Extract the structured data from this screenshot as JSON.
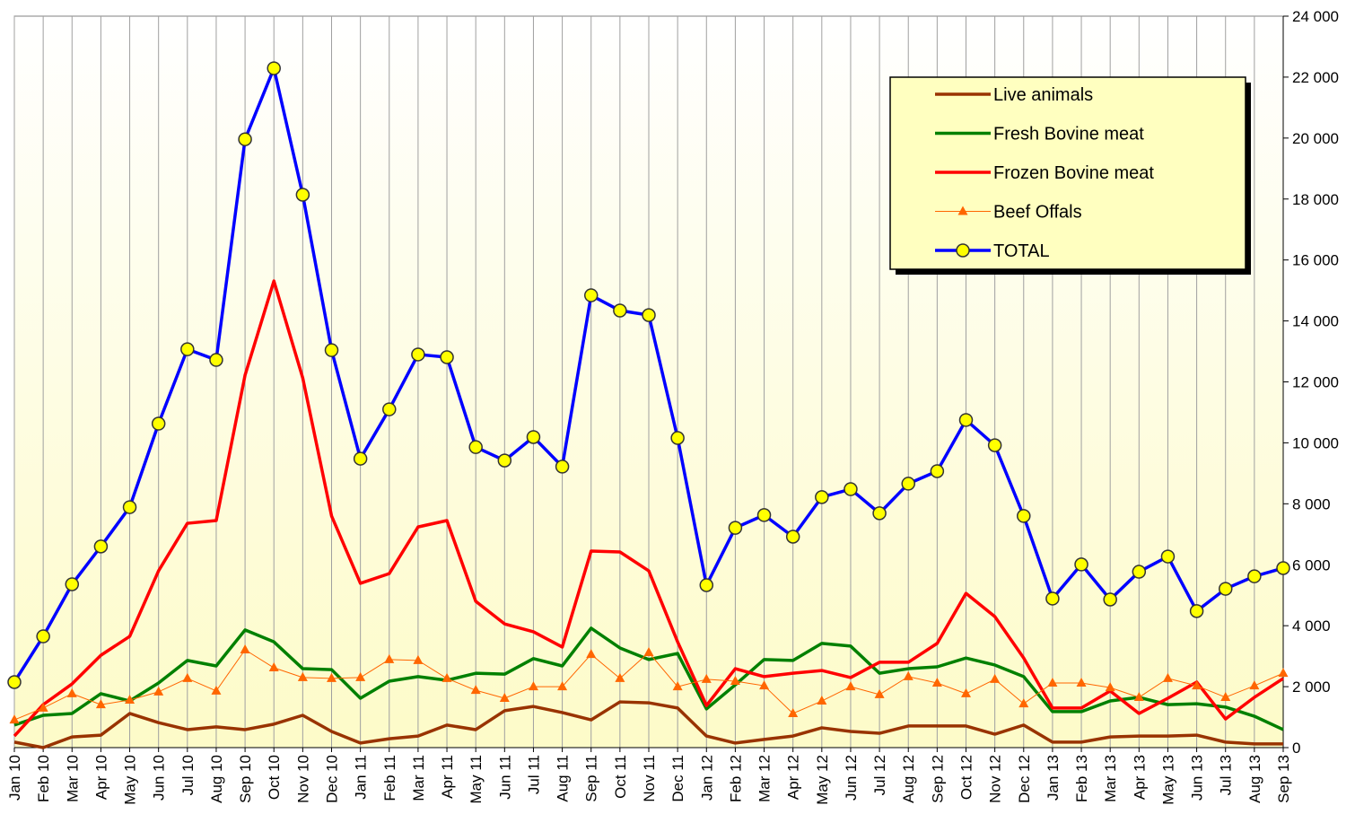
{
  "chart_data": {
    "type": "line",
    "categories": [
      "Jan 10",
      "Feb 10",
      "Mar 10",
      "Apr 10",
      "May 10",
      "Jun 10",
      "Jul 10",
      "Aug 10",
      "Sep 10",
      "Oct 10",
      "Nov 10",
      "Dec 10",
      "Jan 11",
      "Feb 11",
      "Mar 11",
      "Apr 11",
      "May 11",
      "Jun 11",
      "Jul 11",
      "Aug 11",
      "Sep 11",
      "Oct 11",
      "Nov 11",
      "Dec 11",
      "Jan 12",
      "Feb 12",
      "Mar 12",
      "Apr 12",
      "May 12",
      "Jun 12",
      "Jul 12",
      "Aug 12",
      "Sep 12",
      "Oct 12",
      "Nov 12",
      "Dec 12",
      "Jan 13",
      "Feb 13",
      "Mar 13",
      "Apr 13",
      "May 13",
      "Jun 13",
      "Jul 13",
      "Aug 13",
      "Sep 13"
    ],
    "series": [
      {
        "name": "Live animals",
        "color": "#993300",
        "width": 3.5,
        "marker": "none",
        "values": [
          180,
          0,
          350,
          410,
          1120,
          820,
          590,
          680,
          590,
          770,
          1060,
          530,
          150,
          290,
          380,
          740,
          590,
          1210,
          1350,
          1150,
          910,
          1500,
          1470,
          1300,
          380,
          150,
          270,
          380,
          650,
          530,
          470,
          710,
          710,
          710,
          440,
          740,
          180,
          180,
          350,
          380,
          380,
          410,
          180,
          120,
          120
        ]
      },
      {
        "name": "Fresh Bovine meat",
        "color": "#008000",
        "width": 3.5,
        "marker": "none",
        "values": [
          740,
          1060,
          1120,
          1770,
          1530,
          2120,
          2860,
          2680,
          3860,
          3470,
          2590,
          2560,
          1620,
          2180,
          2330,
          2210,
          2440,
          2410,
          2920,
          2680,
          3920,
          3270,
          2890,
          3090,
          1270,
          2060,
          2890,
          2860,
          3420,
          3330,
          2440,
          2590,
          2650,
          2940,
          2710,
          2330,
          1180,
          1180,
          1530,
          1650,
          1410,
          1440,
          1330,
          1030,
          590
        ]
      },
      {
        "name": "Frozen Bovine meat",
        "color": "#ff0000",
        "width": 3.5,
        "marker": "none",
        "values": [
          380,
          1410,
          2090,
          3030,
          3650,
          5800,
          7360,
          7450,
          12220,
          15310,
          12130,
          7600,
          5390,
          5710,
          7240,
          7450,
          4800,
          4060,
          3800,
          3300,
          6450,
          6420,
          5800,
          3470,
          1380,
          2590,
          2330,
          2440,
          2530,
          2300,
          2800,
          2800,
          3420,
          5060,
          4300,
          2940,
          1300,
          1300,
          1860,
          1120,
          1620,
          2150,
          940,
          1650,
          2270
        ]
      },
      {
        "name": "Beef Offals",
        "color": "#ff6600",
        "width": 1,
        "marker": "triangle",
        "values": [
          910,
          1300,
          1770,
          1410,
          1560,
          1830,
          2270,
          1860,
          3210,
          2620,
          2300,
          2270,
          2300,
          2890,
          2860,
          2270,
          1880,
          1620,
          2000,
          2000,
          3060,
          2270,
          3120,
          2000,
          2240,
          2180,
          2030,
          1120,
          1530,
          2000,
          1740,
          2330,
          2120,
          1770,
          2240,
          1440,
          2120,
          2120,
          1970,
          1650,
          2270,
          2030,
          1650,
          2030,
          2440
        ]
      },
      {
        "name": "TOTAL",
        "color": "#0000ff",
        "width": 3.5,
        "marker": "circle",
        "marker_color": "#ffff00",
        "values": [
          2150,
          3650,
          5360,
          6600,
          7890,
          10630,
          13070,
          12720,
          19960,
          22290,
          18140,
          13040,
          9480,
          11100,
          12900,
          12810,
          9860,
          9420,
          10190,
          9220,
          14840,
          14340,
          14190,
          10160,
          5330,
          7210,
          7630,
          6920,
          8220,
          8480,
          7690,
          8660,
          9070,
          10750,
          9920,
          7600,
          4890,
          6010,
          4860,
          5770,
          6270,
          4480,
          5210,
          5620,
          5890
        ]
      }
    ],
    "ylim": [
      0,
      24000
    ],
    "yticks": [
      0,
      {
        "value": 2000,
        "label": "2 000"
      },
      {
        "value": 4000,
        "label": "4 000"
      },
      {
        "value": 6000,
        "label": "6 000"
      },
      {
        "value": 8000,
        "label": "8 000"
      },
      {
        "value": 10000,
        "label": "10 000"
      },
      {
        "value": 12000,
        "label": "12 000"
      },
      {
        "value": 14000,
        "label": "14 000"
      },
      {
        "value": 16000,
        "label": "16 000"
      },
      {
        "value": 18000,
        "label": "18 000"
      },
      {
        "value": 20000,
        "label": "20 000"
      },
      {
        "value": 22000,
        "label": "22 000"
      },
      {
        "value": 24000,
        "label": "24 000"
      }
    ],
    "y_axis_side": "right",
    "grid": "vertical",
    "legend": "upper right"
  }
}
